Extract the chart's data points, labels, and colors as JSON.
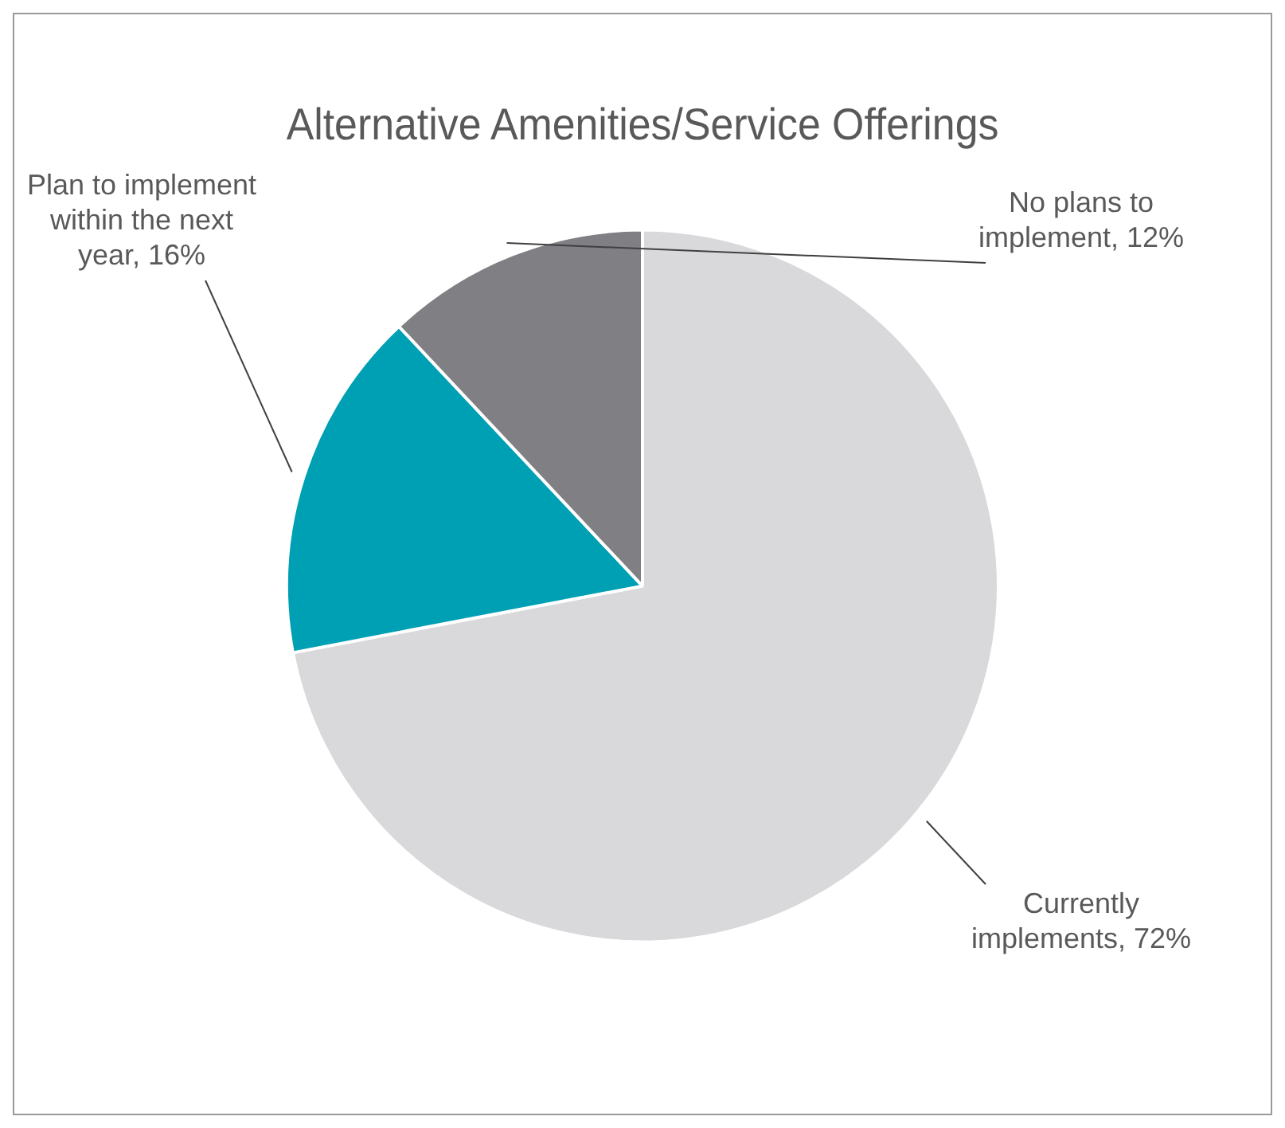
{
  "chart_data": {
    "type": "pie",
    "title": "Alternative Amenities/Service Offerings",
    "categories": [
      "Currently implements",
      "Plan to implement within the next year",
      "No plans to implement"
    ],
    "values": [
      72,
      16,
      12
    ],
    "colors": [
      "#d9d9dc",
      "#00a0b4",
      "#7f7f84"
    ],
    "value_labels": [
      "72%",
      "16%",
      "12%"
    ],
    "legend": false
  }
}
